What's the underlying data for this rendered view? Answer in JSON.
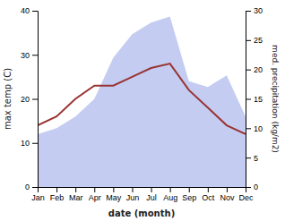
{
  "chart_data": {
    "type": "line",
    "xlabel": "date (month)",
    "ylabel": "max temp (C)",
    "y2label": "med. precipitation (kg/m2)",
    "categories": [
      "Jan",
      "Feb",
      "Mar",
      "Apr",
      "May",
      "Jun",
      "Jul",
      "Aug",
      "Sep",
      "Oct",
      "Nov",
      "Dec"
    ],
    "series": [
      {
        "type": "area",
        "axis": "y2",
        "color": "#b0bcec",
        "values": [
          9,
          10,
          12,
          15,
          22,
          26,
          28,
          29,
          18,
          17,
          19,
          12
        ]
      },
      {
        "type": "line",
        "color": "#993333",
        "values": [
          14,
          16,
          20,
          23,
          23,
          25,
          27,
          28,
          22,
          18,
          14,
          12
        ]
      }
    ],
    "ylim": [
      0,
      40
    ],
    "yticks": [
      0,
      10,
      20,
      30,
      40
    ],
    "y2lim": [
      0,
      30
    ],
    "y2ticks": [
      0,
      5,
      10,
      15,
      20,
      25,
      30
    ],
    "grid": false
  }
}
